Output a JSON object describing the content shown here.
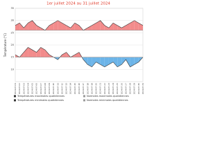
{
  "chart_data": {
    "type": "range-area",
    "title": "1er juillet 2024 au 31 juillet 2024",
    "y_label": "Température (°C)",
    "categories": [
      "2024-07-01",
      "2024-07-02",
      "2024-07-03",
      "2024-07-04",
      "2024-07-05",
      "2024-07-06",
      "2024-07-07",
      "2024-07-08",
      "2024-07-09",
      "2024-07-10",
      "2024-07-11",
      "2024-07-12",
      "2024-07-13",
      "2024-07-14",
      "2024-07-15",
      "2024-07-16",
      "2024-07-17",
      "2024-07-18",
      "2024-07-19",
      "2024-07-20",
      "2024-07-21",
      "2024-07-22",
      "2024-07-23",
      "2024-07-24",
      "2024-07-25",
      "2024-07-26",
      "2024-07-27",
      "2024-07-28",
      "2024-07-29",
      "2024-07-30",
      "2024-07-31"
    ],
    "series": [
      {
        "name": "Températures maximales quotidiennes",
        "color": "#333333",
        "values": [
          28,
          29,
          27,
          29,
          30,
          28,
          27,
          26,
          28,
          29,
          30,
          29,
          28,
          27,
          29,
          28,
          26,
          27,
          28,
          29,
          30,
          28,
          27,
          29,
          28,
          27,
          28,
          29,
          30,
          29,
          28
        ]
      },
      {
        "name": "Normales maximales quotidiennes",
        "color": "#999999",
        "values": [
          26,
          26,
          26,
          26,
          26,
          26,
          26,
          26,
          26,
          26,
          26,
          26,
          26,
          26,
          26,
          26,
          26,
          26,
          26,
          26,
          26,
          26,
          26,
          26,
          26,
          26,
          26,
          26,
          26,
          26,
          26
        ]
      },
      {
        "name": "Températures minimales quotidiennes",
        "color": "#333333",
        "values": [
          16,
          15,
          17,
          19,
          18,
          17,
          19,
          18,
          16,
          15,
          14,
          16,
          17,
          15,
          16,
          17,
          14,
          12,
          11,
          13,
          12,
          11,
          12,
          13,
          11,
          12,
          14,
          11,
          12,
          13,
          15
        ]
      },
      {
        "name": "Normales minimales quotidiennes",
        "color": "#999999",
        "values": [
          15,
          15,
          15,
          15,
          15,
          15,
          15,
          15,
          15,
          15,
          15,
          15,
          15,
          15,
          15,
          15,
          15,
          15,
          15,
          15,
          15,
          15,
          15,
          15,
          15,
          15,
          15,
          15,
          15,
          15,
          15
        ]
      }
    ],
    "above_color": "#f28b8b",
    "below_color": "#6cb4e8",
    "title_color": "#e03a2a",
    "ylim": [
      5,
      35
    ],
    "yticks": [
      10,
      15,
      20,
      25,
      30,
      35
    ],
    "grid": true
  }
}
